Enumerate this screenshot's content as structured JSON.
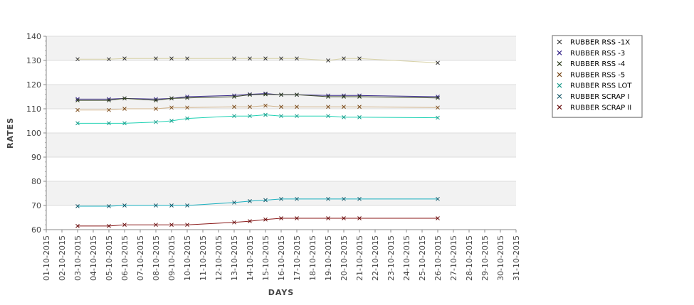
{
  "chart_data": {
    "type": "line",
    "xlabel": "DAYS",
    "ylabel": "RATES",
    "ylim": [
      60,
      140
    ],
    "yticks": [
      60,
      70,
      80,
      90,
      100,
      110,
      120,
      130,
      140
    ],
    "x_tick_labels": [
      "01-10-2015",
      "02-10-2015",
      "03-10-2015",
      "04-10-2015",
      "05-10-2015",
      "06-10-2015",
      "07-10-2015",
      "08-10-2015",
      "09-10-2015",
      "10-10-2015",
      "11-10-2015",
      "12-10-2015",
      "13-10-2015",
      "14-10-2015",
      "15-10-2015",
      "16-10-2015",
      "17-10-2015",
      "18-10-2015",
      "19-10-2015",
      "20-10-2015",
      "21-10-2015",
      "22-10-2015",
      "23-10-2015",
      "24-10-2015",
      "25-10-2015",
      "26-10-2015",
      "27-10-2015",
      "28-10-2015",
      "29-10-2015",
      "30-10-2015",
      "31-10-2015"
    ],
    "x": [
      "03-10-2015",
      "05-10-2015",
      "06-10-2015",
      "08-10-2015",
      "09-10-2015",
      "10-10-2015",
      "13-10-2015",
      "14-10-2015",
      "15-10-2015",
      "16-10-2015",
      "17-10-2015",
      "19-10-2015",
      "20-10-2015",
      "21-10-2015",
      "26-10-2015"
    ],
    "series": [
      {
        "name": "RUBBER RSS -1X",
        "color": "#d8d2a8",
        "marker_color": "#333333",
        "values": [
          130.5,
          130.5,
          130.8,
          130.8,
          130.8,
          130.8,
          130.8,
          130.8,
          130.8,
          130.8,
          130.8,
          130,
          130.8,
          130.8,
          129
        ]
      },
      {
        "name": "RUBBER RSS -3",
        "color": "#3a2a8c",
        "marker_color": "#3a2a8c",
        "values": [
          114,
          114,
          114.3,
          114,
          114.3,
          115,
          115.5,
          116,
          116.3,
          115.8,
          115.8,
          115.5,
          115.5,
          115.5,
          115
        ]
      },
      {
        "name": "RUBBER RSS -4",
        "color": "#3d4a2a",
        "marker_color": "#2a3a1a",
        "values": [
          113.5,
          113.5,
          114.3,
          113.5,
          114.3,
          114.5,
          115,
          115.8,
          116,
          115.8,
          115.8,
          115,
          115,
          115,
          114.5
        ]
      },
      {
        "name": "RUBBER RSS -5",
        "color": "#d2b48c",
        "marker_color": "#7a4a1a",
        "values": [
          109.5,
          109.5,
          110,
          110,
          110.5,
          110.5,
          110.8,
          110.8,
          111.3,
          110.8,
          110.8,
          110.8,
          110.8,
          110.8,
          110.5
        ]
      },
      {
        "name": "RUBBER RSS LOT",
        "color": "#20d2b4",
        "marker_color": "#1a9a8a",
        "values": [
          104,
          104,
          104,
          104.5,
          105,
          106,
          107,
          107,
          107.5,
          107,
          107,
          107,
          106.5,
          106.5,
          106.3
        ]
      },
      {
        "name": "RUBBER SCRAP I",
        "color": "#1ab0c0",
        "marker_color": "#1a5a6a",
        "values": [
          69.7,
          69.7,
          70,
          70,
          70,
          70,
          71.2,
          71.8,
          72.2,
          72.7,
          72.7,
          72.7,
          72.7,
          72.7,
          72.7
        ]
      },
      {
        "name": "RUBBER SCRAP II",
        "color": "#8b1a1a",
        "marker_color": "#6a1010",
        "values": [
          61.5,
          61.5,
          62,
          62,
          62,
          62,
          63,
          63.5,
          64.2,
          64.7,
          64.7,
          64.7,
          64.7,
          64.7,
          64.7
        ]
      }
    ],
    "grid": true,
    "legend_position": "top-right"
  }
}
